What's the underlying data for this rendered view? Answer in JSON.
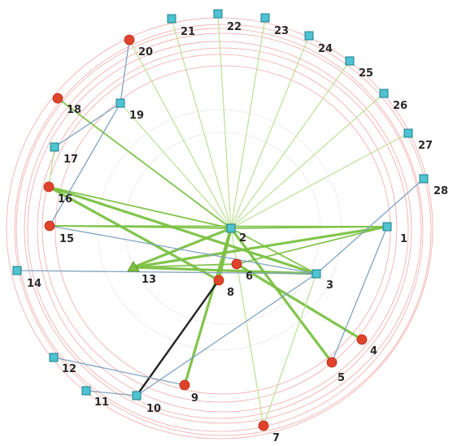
{
  "diagram": {
    "colors": {
      "square_fill": "#4fc3d0",
      "square_stroke": "#1b7f8c",
      "circle_fill": "#e0432b",
      "circle_stroke": "#b02a15",
      "triangle_fill": "#7cc144",
      "edge_green": "#7cc144",
      "edge_green_light": "#b6dc8a",
      "edge_blue": "#7b9fc0",
      "edge_black": "#1a1a1a",
      "ring": "#f2a8a8"
    },
    "nodes": [
      {
        "id": "1",
        "label": "1",
        "shape": "square-icon"
      },
      {
        "id": "2",
        "label": "2",
        "shape": "square-icon"
      },
      {
        "id": "3",
        "label": "3",
        "shape": "square-icon"
      },
      {
        "id": "4",
        "label": "4",
        "shape": "circle-icon"
      },
      {
        "id": "5",
        "label": "5",
        "shape": "circle-icon"
      },
      {
        "id": "6",
        "label": "6",
        "shape": "circle-icon"
      },
      {
        "id": "7",
        "label": "7",
        "shape": "circle-icon"
      },
      {
        "id": "8",
        "label": "8",
        "shape": "circle-icon"
      },
      {
        "id": "9",
        "label": "9",
        "shape": "circle-icon"
      },
      {
        "id": "10",
        "label": "10",
        "shape": "square-icon"
      },
      {
        "id": "11",
        "label": "11",
        "shape": "square-icon"
      },
      {
        "id": "12",
        "label": "12",
        "shape": "square-icon"
      },
      {
        "id": "13",
        "label": "13",
        "shape": "triangle-icon"
      },
      {
        "id": "14",
        "label": "14",
        "shape": "square-icon"
      },
      {
        "id": "15",
        "label": "15",
        "shape": "circle-icon"
      },
      {
        "id": "16",
        "label": "16",
        "shape": "circle-icon"
      },
      {
        "id": "17",
        "label": "17",
        "shape": "square-icon"
      },
      {
        "id": "18",
        "label": "18",
        "shape": "circle-icon"
      },
      {
        "id": "19",
        "label": "19",
        "shape": "square-icon"
      },
      {
        "id": "20",
        "label": "20",
        "shape": "circle-icon"
      },
      {
        "id": "21",
        "label": "21",
        "shape": "square-icon"
      },
      {
        "id": "22",
        "label": "22",
        "shape": "square-icon"
      },
      {
        "id": "23",
        "label": "23",
        "shape": "square-icon"
      },
      {
        "id": "24",
        "label": "24",
        "shape": "square-icon"
      },
      {
        "id": "25",
        "label": "25",
        "shape": "square-icon"
      },
      {
        "id": "26",
        "label": "26",
        "shape": "square-icon"
      },
      {
        "id": "27",
        "label": "27",
        "shape": "square-icon"
      },
      {
        "id": "28",
        "label": "28",
        "shape": "square-icon"
      }
    ],
    "edges": [
      {
        "from": "2",
        "to": "21",
        "style": "green-light"
      },
      {
        "from": "2",
        "to": "22",
        "style": "green-light"
      },
      {
        "from": "2",
        "to": "23",
        "style": "green-light"
      },
      {
        "from": "2",
        "to": "24",
        "style": "green-light"
      },
      {
        "from": "2",
        "to": "25",
        "style": "green-light"
      },
      {
        "from": "2",
        "to": "26",
        "style": "green-light"
      },
      {
        "from": "2",
        "to": "27",
        "style": "green-light"
      },
      {
        "from": "2",
        "to": "20",
        "style": "green-light"
      },
      {
        "from": "2",
        "to": "19",
        "style": "green-light"
      },
      {
        "from": "2",
        "to": "18",
        "style": "green"
      },
      {
        "from": "2",
        "to": "16",
        "style": "green"
      },
      {
        "from": "2",
        "to": "15",
        "style": "green"
      },
      {
        "from": "2",
        "to": "13",
        "style": "green-bold"
      },
      {
        "from": "2",
        "to": "8",
        "style": "green-bold"
      },
      {
        "from": "2",
        "to": "9",
        "style": "green-bold"
      },
      {
        "from": "2",
        "to": "3",
        "style": "green"
      },
      {
        "from": "2",
        "to": "1",
        "style": "green"
      },
      {
        "from": "2",
        "to": "5",
        "style": "green-bold"
      },
      {
        "from": "2",
        "to": "7",
        "style": "green-light"
      },
      {
        "from": "16",
        "to": "8",
        "style": "green-bold"
      },
      {
        "from": "16",
        "to": "3",
        "style": "green-bold"
      },
      {
        "from": "13",
        "to": "1",
        "style": "green-bold"
      },
      {
        "from": "13",
        "to": "3",
        "style": "green-bold"
      },
      {
        "from": "13",
        "to": "6",
        "style": "green"
      },
      {
        "from": "6",
        "to": "1",
        "style": "green"
      },
      {
        "from": "6",
        "to": "4",
        "style": "green-bold"
      },
      {
        "from": "15",
        "to": "1",
        "style": "green"
      },
      {
        "from": "15",
        "to": "3",
        "style": "blue"
      },
      {
        "from": "14",
        "to": "3",
        "style": "blue"
      },
      {
        "from": "3",
        "to": "28",
        "style": "blue"
      },
      {
        "from": "3",
        "to": "10",
        "style": "blue"
      },
      {
        "from": "3",
        "to": "7",
        "style": "green-light"
      },
      {
        "from": "1",
        "to": "5",
        "style": "blue"
      },
      {
        "from": "8",
        "to": "10",
        "style": "black"
      },
      {
        "from": "12",
        "to": "9",
        "style": "blue"
      },
      {
        "from": "11",
        "to": "10",
        "style": "blue"
      },
      {
        "from": "19",
        "to": "20",
        "style": "blue"
      },
      {
        "from": "19",
        "to": "17",
        "style": "blue"
      },
      {
        "from": "19",
        "to": "15",
        "style": "blue"
      },
      {
        "from": "17",
        "to": "16",
        "style": "green-light"
      }
    ]
  }
}
